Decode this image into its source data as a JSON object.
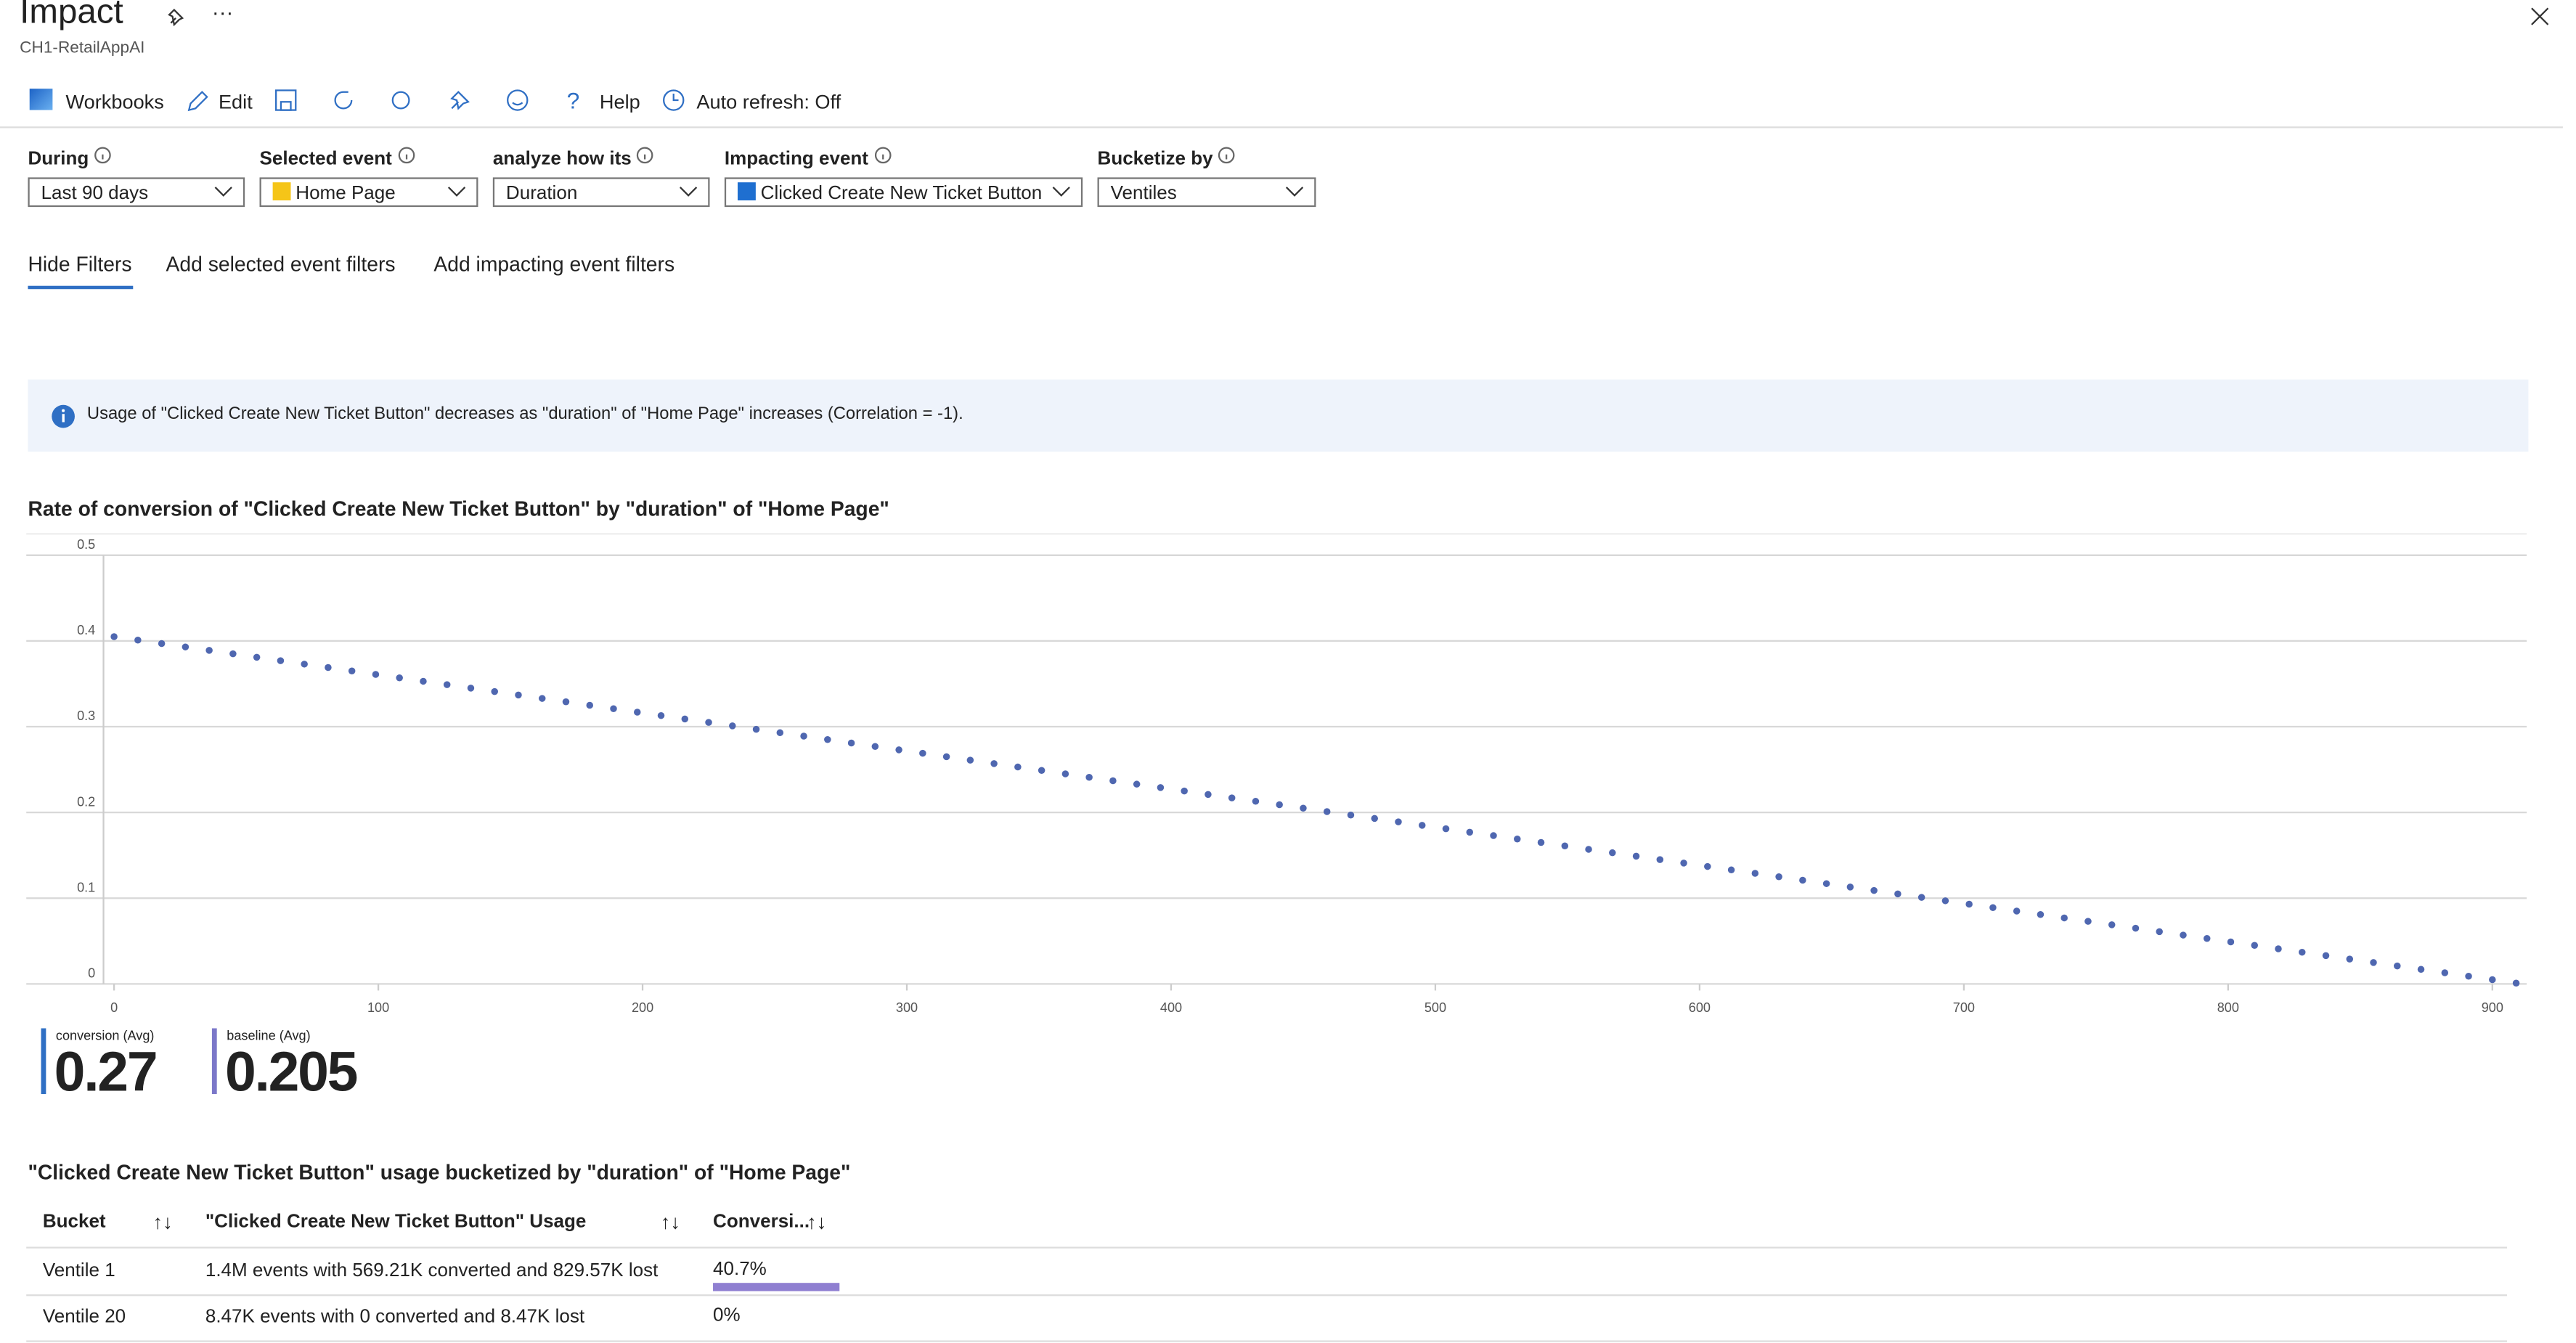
{
  "header": {
    "title": "Impact",
    "subtitle": "CH1-RetailAppAI"
  },
  "toolbar": [
    "Workbooks",
    "Edit",
    "Help",
    "Auto refresh: Off"
  ],
  "params": [
    {
      "label": "During",
      "value": "Last 90 days"
    },
    {
      "label": "Selected event",
      "value": "Home Page"
    },
    {
      "label": "analyze how its",
      "value": "Duration"
    },
    {
      "label": "Impacting event",
      "value": "Clicked Create New Ticket Button"
    },
    {
      "label": "Bucketize by",
      "value": "Ventiles"
    }
  ],
  "tabs": [
    "Hide Filters",
    "Add selected event filters",
    "Add impacting event filters"
  ],
  "info": "Usage of \"Clicked Create New Ticket Button\" decreases as \"duration\" of \"Home Page\" increases (Correlation = -1).",
  "chart_data": {
    "type": "scatter",
    "title": "Rate of conversion of \"Clicked Create New Ticket Button\" by \"duration\" of \"Home Page\"",
    "color": "#4f67b0",
    "grid": true,
    "xlim": [
      -4,
      913
    ],
    "ylim": [
      0,
      0.5
    ],
    "xticks": [
      0,
      100,
      200,
      300,
      400,
      500,
      600,
      700,
      800,
      900
    ],
    "yticks": [
      0,
      0.1,
      0.2,
      0.3,
      0.4,
      0.5
    ],
    "x": [
      0,
      9,
      18,
      27,
      36,
      45,
      54,
      63,
      72,
      81,
      90,
      99,
      108,
      117,
      126,
      135,
      144,
      153,
      162,
      171,
      180,
      189,
      198,
      207,
      216,
      225,
      234,
      243,
      252,
      261,
      270,
      279,
      288,
      297,
      306,
      315,
      324,
      333,
      342,
      351,
      360,
      369,
      378,
      387,
      396,
      405,
      414,
      423,
      432,
      441,
      450,
      459,
      468,
      477,
      486,
      495,
      504,
      513,
      522,
      531,
      540,
      549,
      558,
      567,
      576,
      585,
      594,
      603,
      612,
      621,
      630,
      639,
      648,
      657,
      666,
      675,
      684,
      693,
      702,
      711,
      720,
      729,
      738,
      747,
      756,
      765,
      774,
      783,
      792,
      801,
      810,
      819,
      828,
      837,
      846,
      855,
      864,
      873,
      882,
      891,
      900,
      909
    ],
    "values": [
      0.405,
      0.401,
      0.397,
      0.393,
      0.389,
      0.385,
      0.381,
      0.377,
      0.373,
      0.369,
      0.365,
      0.361,
      0.357,
      0.353,
      0.349,
      0.345,
      0.341,
      0.337,
      0.333,
      0.329,
      0.325,
      0.321,
      0.317,
      0.313,
      0.309,
      0.305,
      0.301,
      0.297,
      0.293,
      0.289,
      0.285,
      0.281,
      0.277,
      0.273,
      0.269,
      0.265,
      0.261,
      0.257,
      0.253,
      0.249,
      0.245,
      0.241,
      0.237,
      0.233,
      0.229,
      0.225,
      0.221,
      0.217,
      0.213,
      0.209,
      0.205,
      0.201,
      0.197,
      0.193,
      0.189,
      0.185,
      0.181,
      0.177,
      0.173,
      0.169,
      0.165,
      0.161,
      0.157,
      0.153,
      0.149,
      0.145,
      0.141,
      0.137,
      0.133,
      0.129,
      0.125,
      0.121,
      0.117,
      0.113,
      0.109,
      0.105,
      0.101,
      0.097,
      0.093,
      0.089,
      0.085,
      0.081,
      0.077,
      0.073,
      0.069,
      0.065,
      0.061,
      0.057,
      0.053,
      0.049,
      0.045,
      0.041,
      0.037,
      0.033,
      0.029,
      0.025,
      0.021,
      0.017,
      0.013,
      0.009,
      0.005,
      0.001
    ]
  },
  "tiles": [
    {
      "label": "conversion (Avg)",
      "value": 0.27,
      "color": "#2f6fc4"
    },
    {
      "label": "baseline (Avg)",
      "value": 0.205,
      "color": "#7b77c9"
    }
  ],
  "table": {
    "title": "\"Clicked Create New Ticket Button\" usage bucketized by \"duration\" of \"Home Page\"",
    "columns": [
      "Bucket",
      "\"Clicked Create New Ticket Button\" Usage",
      "Conversi..."
    ],
    "rows": [
      {
        "cells": [
          "Ventile 1",
          "1.4M events with 569.21K converted and 829.57K lost"
        ],
        "conversion": {
          "value": 40.7,
          "label": "40.7%"
        }
      },
      {
        "cells": [
          "Ventile 20",
          "8.47K events with 0 converted and 8.47K lost"
        ],
        "conversion": {
          "value": 0,
          "label": "0%"
        }
      }
    ]
  }
}
